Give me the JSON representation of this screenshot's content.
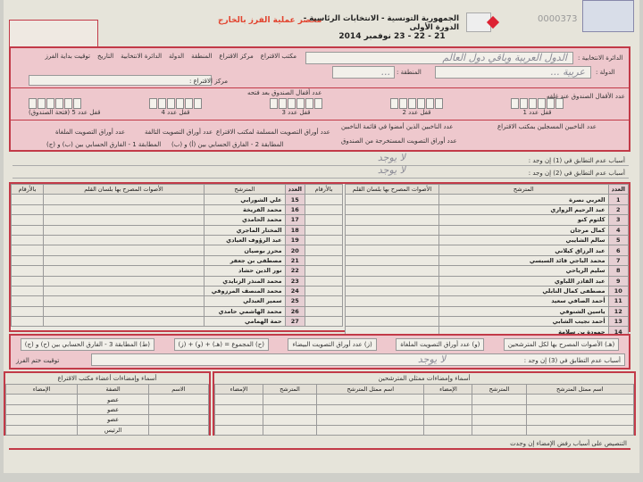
{
  "header": {
    "title": "الجمهورية التونسية - الانتخابات الرئاسية - الدورة الأولى",
    "dates": "21 - 22 - 23 نوفمبر 2014",
    "form_title": "محضر عملية الفرز بالخارج",
    "serial": "0000373",
    "accent": "#c23a48",
    "title_color": "#e2442f"
  },
  "info": {
    "district_label": "الدائرة الانتخابية :",
    "district_value": "الدول العربية وباقي دول العالم",
    "country_label": "الدولة :",
    "country_value": "عربية ... ",
    "region_label": "المنطقة :",
    "region_value": "... ",
    "center_label": "مركز الاقتراع :",
    "office_label": "مكتب الاقتراع",
    "codes": [
      "الدائرة الانتخابية",
      "الدولة",
      "المنطقة",
      "مركز الاقتراع",
      "مكتب الاقتراع",
      "التاريخ",
      "توقيت بداية الفرز"
    ],
    "locks_before": "عدد الأقفال الصندوق عند غلقه",
    "locks_after": "عدد أقفال الصندوق بعد فتحه",
    "locks": [
      "قفل عدد 1",
      "قفل عدد 2",
      "قفل عدد 3",
      "قفل عدد 4",
      "قفل عدد 5 (فتحة الصندوق)"
    ]
  },
  "counts": {
    "a": "عدد الناخبين المسجلين بمكتب الاقتراع",
    "b": "عدد الناخبين الذين أمضوا في قائمة الناخبين",
    "c": "عدد أوراق التصويت المستخرجة من الصندوق",
    "d": "عدد أوراق التصويت الملغاة",
    "e": "عدد أوراق التصويت المسلمة لمكتب الاقتراع",
    "f": "المطابقة 1 - الفارق الحسابي بين (ب) و (ج)",
    "g": "عدد أوراق التصويت التالفة",
    "h": "المطابقة 2 - الفارق الحسابي بين (أ) و (ب)"
  },
  "reasons": {
    "r1": "أسباب عدم التطابق في (1) إن وجد :",
    "r2": "أسباب عدم التطابق في (2) إن وجد :",
    "r3": "أسباب عدم التطابق في (3) إن وجد :",
    "none": "لا يوجد"
  },
  "candidates_table": {
    "col_number": "العدد",
    "col_name": "المترشح",
    "col_votes": "الأصوات المصرح بها بلسان القلم",
    "col_digits": "بالأرقام",
    "right": [
      {
        "n": "1",
        "name": "العربي نصرة"
      },
      {
        "n": "2",
        "name": "عبد الرحيم الزواري"
      },
      {
        "n": "3",
        "name": "كلثوم كنو"
      },
      {
        "n": "4",
        "name": "كمال مرجان"
      },
      {
        "n": "5",
        "name": "سالم الشايبي"
      },
      {
        "n": "6",
        "name": "عبد الرزاق كيلاني"
      },
      {
        "n": "7",
        "name": "محمد الباجي قائد السبسي"
      },
      {
        "n": "8",
        "name": "سليم الرياحي"
      },
      {
        "n": "9",
        "name": "عبد القادر اللباوي"
      },
      {
        "n": "10",
        "name": "مصطفى كمال النابلي"
      },
      {
        "n": "11",
        "name": "أحمد الصافي سعيد"
      },
      {
        "n": "12",
        "name": "ياسين الشنوفي"
      },
      {
        "n": "13",
        "name": "أحمد نجيب الشابي"
      },
      {
        "n": "14",
        "name": "حمودة بن سلامة"
      }
    ],
    "left": [
      {
        "n": "15",
        "name": "علي الشورابي"
      },
      {
        "n": "16",
        "name": "محمد الفريخة"
      },
      {
        "n": "17",
        "name": "محمد الحامدي"
      },
      {
        "n": "18",
        "name": "المختار الماجري"
      },
      {
        "n": "19",
        "name": "عبد الرؤوف العيادي"
      },
      {
        "n": "20",
        "name": "محرز بوصيان"
      },
      {
        "n": "21",
        "name": "مصطفى بن جعفر"
      },
      {
        "n": "22",
        "name": "نور الدين حشاد"
      },
      {
        "n": "23",
        "name": "محمد المنذر الزنايدي"
      },
      {
        "n": "24",
        "name": "محمد المنصف المرزوقي"
      },
      {
        "n": "25",
        "name": "سمير العبدلي"
      },
      {
        "n": "26",
        "name": "محمد الهاشمي حامدي"
      },
      {
        "n": "27",
        "name": "حمة الهمامي"
      }
    ]
  },
  "summary": {
    "h": "(هـ) الأصوات المصرح بها لكل المترشحين",
    "w": "(و) عدد أوراق التصويت الملغاة",
    "z": "(ز) عدد أوراق التصويت البيضاء",
    "sum": "(ح) المجموع = (هـ) + (و) + (ز)",
    "m3": "(ط) المطابقة 3 - الفارق الحسابي بين (ح) و (ج)",
    "end_time": "توقيت ختم الفرز"
  },
  "signatures": {
    "reps_title": "أسماء وإمضاءات ممثلي المترشحين",
    "reps_cols": [
      "اسم ممثل المترشح",
      "المترشح",
      "الإمضاء",
      "اسم ممثل المترشح",
      "المترشح",
      "الإمضاء"
    ],
    "committee_title": "أسماء وإمضاءات أعضاء مكتب الاقتراع",
    "committee_cols": [
      "الاسم",
      "الصفة",
      "الإمضاء"
    ],
    "roles": [
      "عضو",
      "عضو",
      "عضو",
      "الرئيس"
    ]
  },
  "footer": {
    "refusal": "التنصيص على أسباب رفض الإمضاء إن وجدت"
  }
}
